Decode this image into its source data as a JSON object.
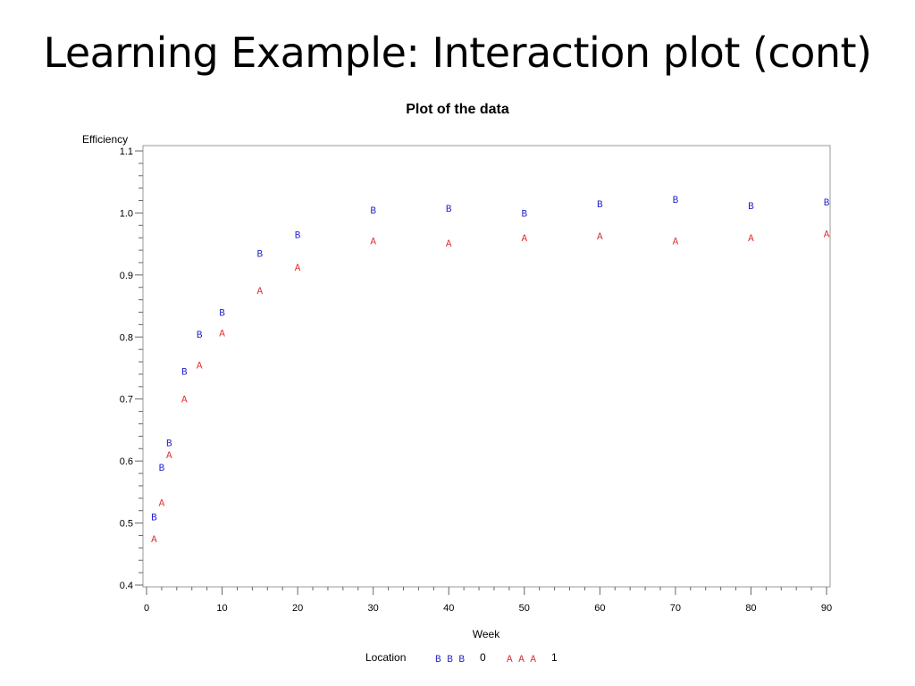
{
  "slide": {
    "title": "Learning Example: Interaction plot (cont)"
  },
  "chart_data": {
    "type": "scatter",
    "title": "Plot of the data",
    "xlabel": "Week",
    "ylabel": "Efficiency",
    "xlim": [
      0,
      90
    ],
    "ylim": [
      0.4,
      1.1
    ],
    "xticks": [
      0,
      10,
      20,
      30,
      40,
      50,
      60,
      70,
      80,
      90
    ],
    "yticks": [
      0.4,
      0.5,
      0.6,
      0.7,
      0.8,
      0.9,
      1.0,
      1.1
    ],
    "ytick_labels": [
      "0.4",
      "0.5",
      "0.6",
      "0.7",
      "0.8",
      "0.9",
      "1.0",
      "1.1"
    ],
    "grid": false,
    "legend": {
      "title": "Location",
      "placement": "bottom",
      "entries": [
        {
          "symbol": "B B B",
          "label": "0"
        },
        {
          "symbol": "A A A",
          "label": "1"
        }
      ]
    },
    "series": [
      {
        "symbol": "B",
        "color": "#1f1fcc",
        "x": [
          1,
          2,
          3,
          5,
          7,
          10,
          15,
          20,
          30,
          40,
          50,
          60,
          70,
          80,
          90
        ],
        "y": [
          0.51,
          0.59,
          0.63,
          0.745,
          0.805,
          0.84,
          0.935,
          0.965,
          1.005,
          1.008,
          1.0,
          1.015,
          1.022,
          1.012,
          1.018
        ]
      },
      {
        "symbol": "A",
        "color": "#e03030",
        "x": [
          1,
          2,
          3,
          5,
          7,
          10,
          15,
          20,
          30,
          40,
          50,
          60,
          70,
          80,
          90
        ],
        "y": [
          0.475,
          0.533,
          0.61,
          0.7,
          0.755,
          0.807,
          0.875,
          0.913,
          0.955,
          0.952,
          0.96,
          0.963,
          0.955,
          0.96,
          0.967
        ]
      }
    ]
  }
}
